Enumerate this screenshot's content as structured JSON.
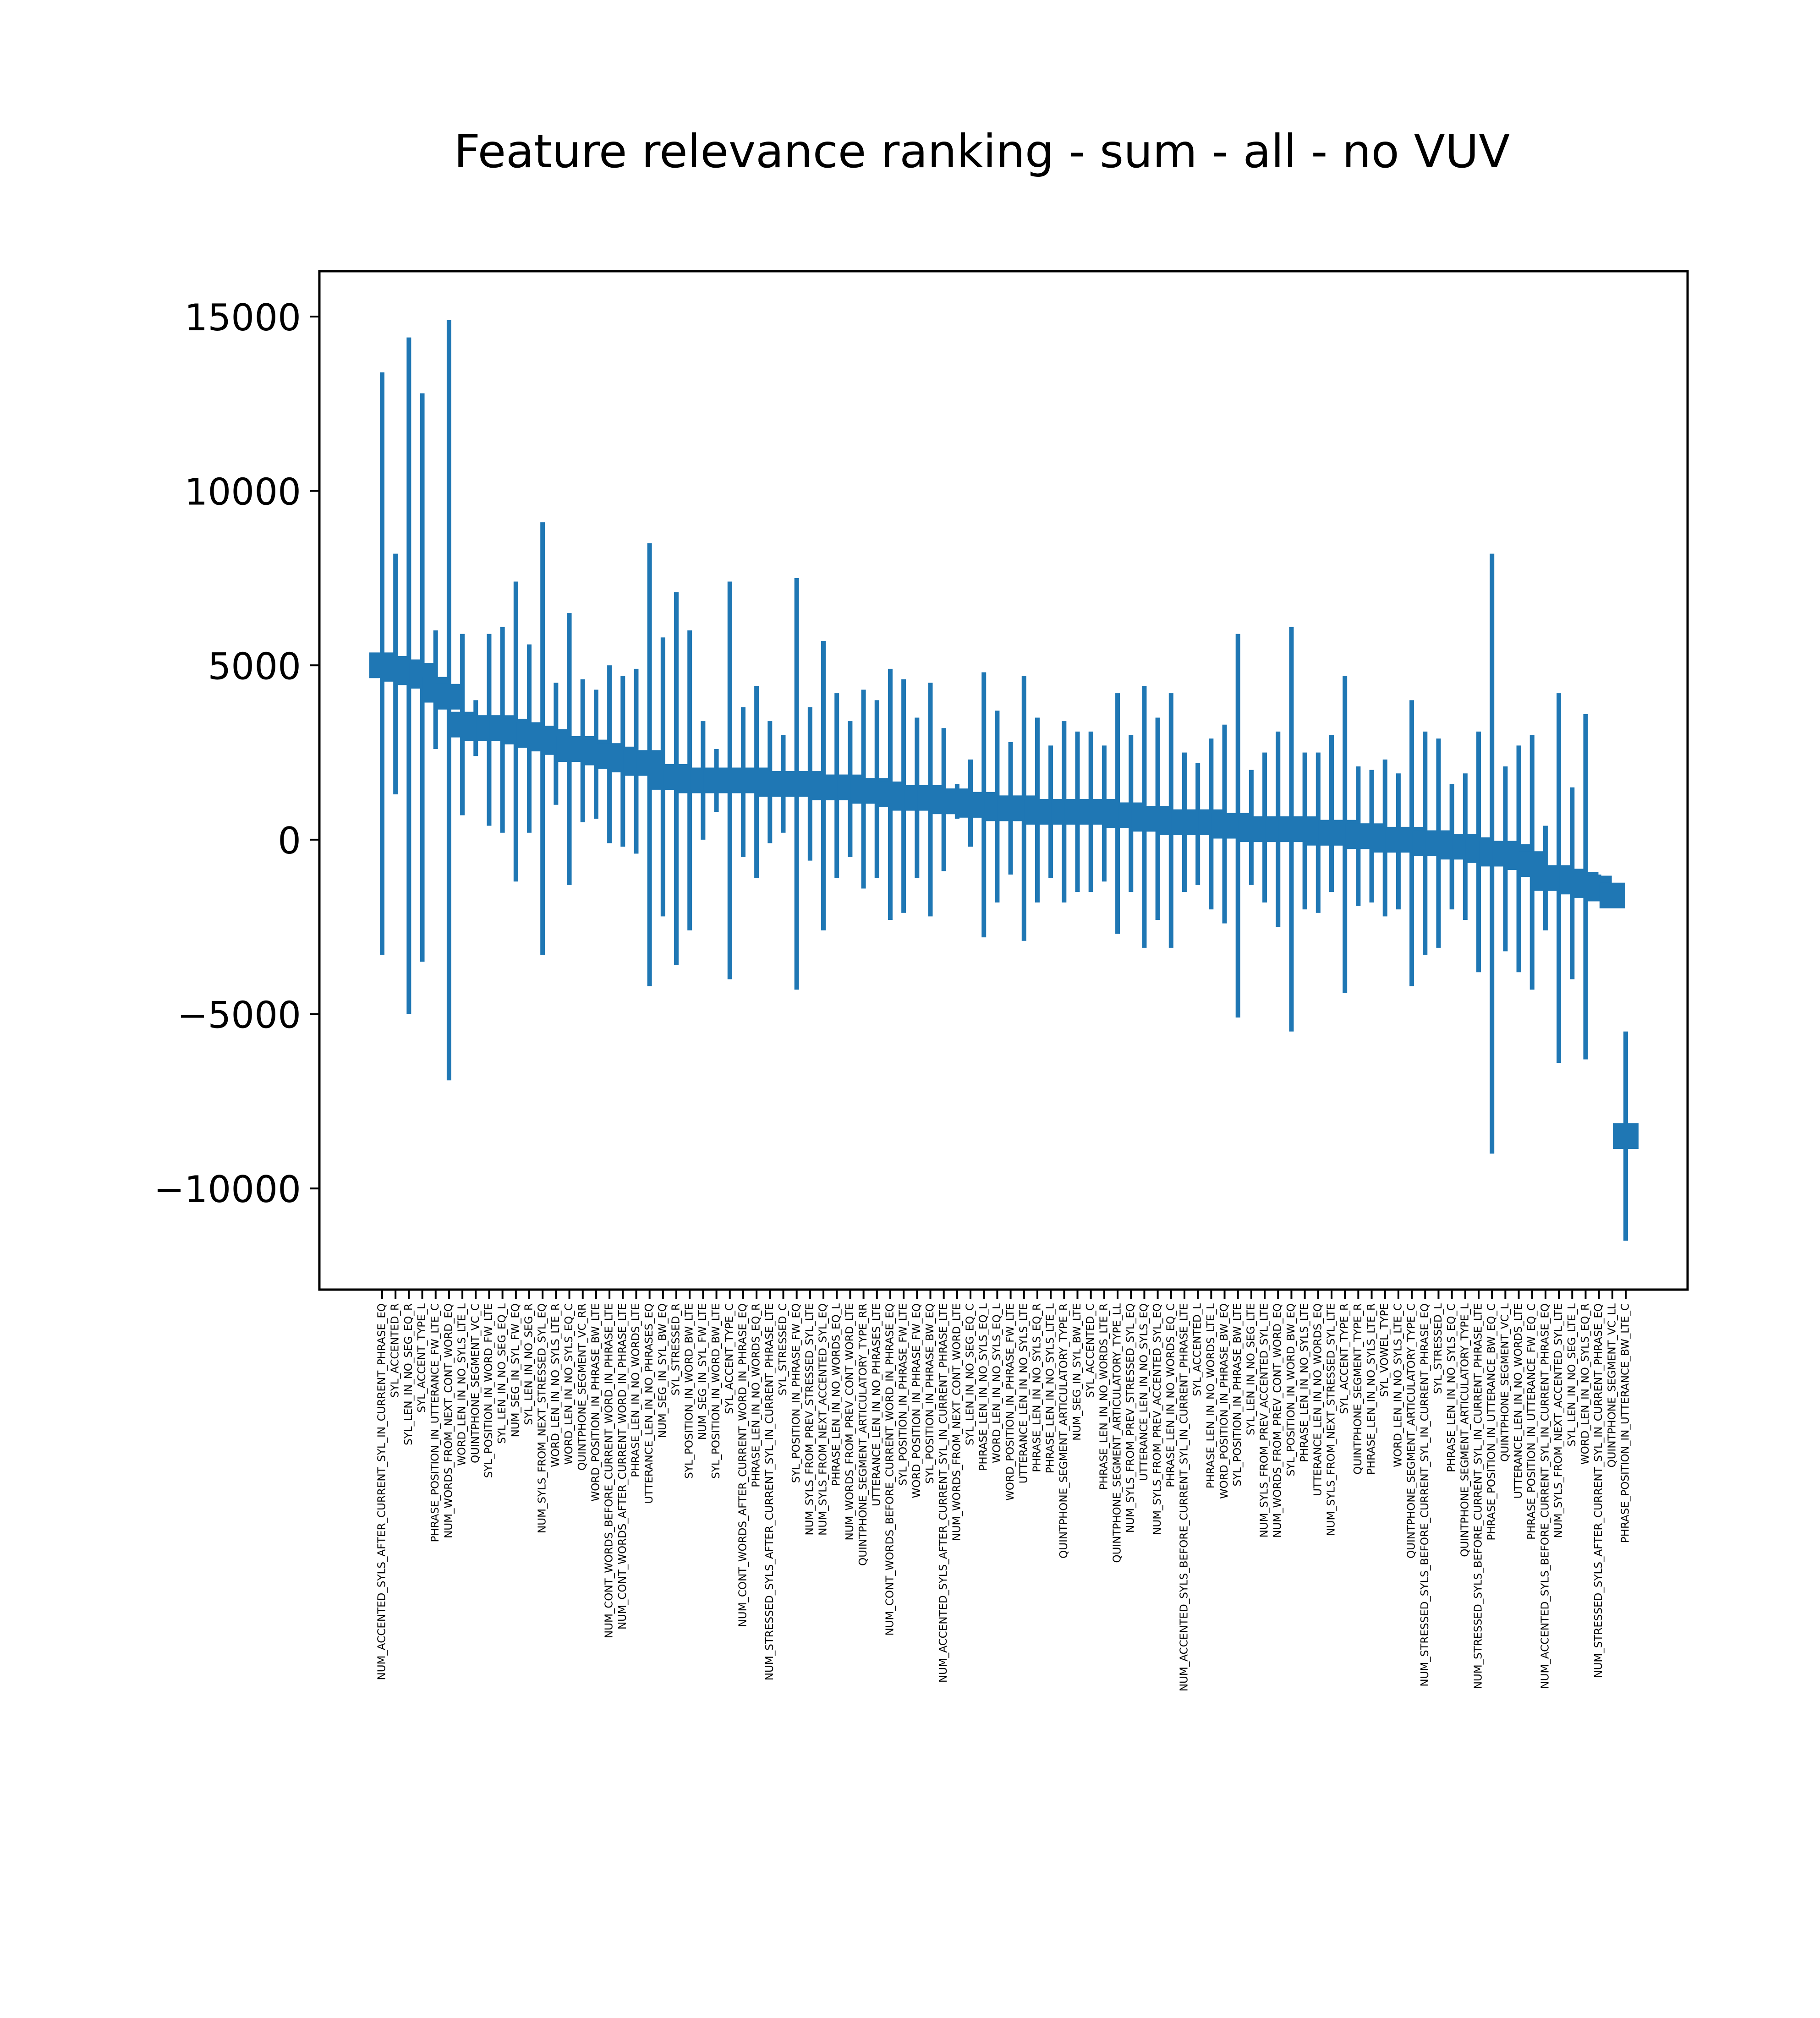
{
  "chart_data": {
    "type": "bar",
    "title": "Feature relevance ranking - sum - all - no VUV",
    "xlabel": "",
    "ylabel": "",
    "ylim": [
      -12900,
      16300
    ],
    "yticks": [
      15000,
      10000,
      5000,
      0,
      -5000,
      -10000
    ],
    "ytick_labels": [
      "15000",
      "10000",
      "5000",
      "0",
      "−5000",
      "−10000"
    ],
    "grid": false,
    "legend": "none",
    "color": "#1f77b4",
    "marker_style": "square mean marker with vertical error bar",
    "points": [
      {
        "label": "NUM_ACCENTED_SYLS_AFTER_CURRENT_SYL_IN_CURRENT_PHRASE_EQ",
        "mean": 5000,
        "low": -3300,
        "high": 13400
      },
      {
        "label": "SYL_ACCENTED_R",
        "mean": 4900,
        "low": 1300,
        "high": 8200
      },
      {
        "label": "SYL_LEN_IN_NO_SEG_EQ_R",
        "mean": 4800,
        "low": -5000,
        "high": 14400
      },
      {
        "label": "SYL_ACCENT_TYPE_L",
        "mean": 4700,
        "low": -3500,
        "high": 12800
      },
      {
        "label": "PHRASE_POSITION_IN_UTTERANCE_FW_LTE_C",
        "mean": 4300,
        "low": 2600,
        "high": 6000
      },
      {
        "label": "NUM_WORDS_FROM_NEXT_CONT_WORD_EQ",
        "mean": 4100,
        "low": -6900,
        "high": 14900
      },
      {
        "label": "WORD_LEN_IN_NO_SYLS_LTE_L",
        "mean": 3300,
        "low": 700,
        "high": 5900
      },
      {
        "label": "QUINTPHONE_SEGMENT_VC_C",
        "mean": 3200,
        "low": 2400,
        "high": 4000
      },
      {
        "label": "SYL_POSITION_IN_WORD_FW_LTE",
        "mean": 3200,
        "low": 400,
        "high": 5900
      },
      {
        "label": "SYL_LEN_IN_NO_SEG_EQ_L",
        "mean": 3200,
        "low": 200,
        "high": 6100
      },
      {
        "label": "NUM_SEG_IN_SYL_FW_EQ",
        "mean": 3100,
        "low": -1200,
        "high": 7400
      },
      {
        "label": "SYL_LEN_IN_NO_SEG_R",
        "mean": 3000,
        "low": 200,
        "high": 5600
      },
      {
        "label": "NUM_SYLS_FROM_NEXT_STRESSED_SYL_EQ",
        "mean": 2900,
        "low": -3300,
        "high": 9100
      },
      {
        "label": "WORD_LEN_IN_NO_SYLS_LTE_R",
        "mean": 2800,
        "low": 1000,
        "high": 4500
      },
      {
        "label": "WORD_LEN_IN_NO_SYLS_EQ_C",
        "mean": 2600,
        "low": -1300,
        "high": 6500
      },
      {
        "label": "QUINTPHONE_SEGMENT_VC_RR",
        "mean": 2600,
        "low": 500,
        "high": 4600
      },
      {
        "label": "WORD_POSITION_IN_PHRASE_BW_LTE",
        "mean": 2500,
        "low": 600,
        "high": 4300
      },
      {
        "label": "NUM_CONT_WORDS_BEFORE_CURRENT_WORD_IN_PHRASE_LTE",
        "mean": 2400,
        "low": -100,
        "high": 5000
      },
      {
        "label": "NUM_CONT_WORDS_AFTER_CURRENT_WORD_IN_PHRASE_LTE",
        "mean": 2300,
        "low": -200,
        "high": 4700
      },
      {
        "label": "PHRASE_LEN_IN_NO_WORDS_LTE",
        "mean": 2200,
        "low": -400,
        "high": 4900
      },
      {
        "label": "UTTERANCE_LEN_IN_NO_PHRASES_EQ",
        "mean": 2200,
        "low": -4200,
        "high": 8500
      },
      {
        "label": "NUM_SEG_IN_SYL_BW_EQ",
        "mean": 1800,
        "low": -2200,
        "high": 5800
      },
      {
        "label": "SYL_STRESSED_R",
        "mean": 1800,
        "low": -3600,
        "high": 7100
      },
      {
        "label": "SYL_POSITION_IN_WORD_BW_LTE",
        "mean": 1700,
        "low": -2600,
        "high": 6000
      },
      {
        "label": "NUM_SEG_IN_SYL_FW_LTE",
        "mean": 1700,
        "low": 0,
        "high": 3400
      },
      {
        "label": "SYL_POSITION_IN_WORD_BW_LTE",
        "mean": 1700,
        "low": 800,
        "high": 2600
      },
      {
        "label": "SYL_ACCENT_TYPE_C",
        "mean": 1700,
        "low": -4000,
        "high": 7400
      },
      {
        "label": "NUM_CONT_WORDS_AFTER_CURRENT_WORD_IN_PHRASE_EQ",
        "mean": 1700,
        "low": -500,
        "high": 3800
      },
      {
        "label": "PHRASE_LEN_IN_NO_WORDS_EQ_R",
        "mean": 1700,
        "low": -1100,
        "high": 4400
      },
      {
        "label": "NUM_STRESSED_SYLS_AFTER_CURRENT_SYL_IN_CURRENT_PHRASE_LTE",
        "mean": 1600,
        "low": -100,
        "high": 3400
      },
      {
        "label": "SYL_STRESSED_C",
        "mean": 1600,
        "low": 200,
        "high": 3000
      },
      {
        "label": "SYL_POSITION_IN_PHRASE_FW_EQ",
        "mean": 1600,
        "low": -4300,
        "high": 7500
      },
      {
        "label": "NUM_SYLS_FROM_PREV_STRESSED_SYL_LTE",
        "mean": 1600,
        "low": -600,
        "high": 3800
      },
      {
        "label": "NUM_SYLS_FROM_NEXT_ACCENTED_SYL_EQ",
        "mean": 1500,
        "low": -2600,
        "high": 5700
      },
      {
        "label": "PHRASE_LEN_IN_NO_WORDS_EQ_L",
        "mean": 1500,
        "low": -1100,
        "high": 4200
      },
      {
        "label": "NUM_WORDS_FROM_PREV_CONT_WORD_LTE",
        "mean": 1500,
        "low": -500,
        "high": 3400
      },
      {
        "label": "QUINTPHONE_SEGMENT_ARTICULATORY_TYPE_RR",
        "mean": 1400,
        "low": -1400,
        "high": 4300
      },
      {
        "label": "UTTERANCE_LEN_IN_NO_PHRASES_LTE",
        "mean": 1400,
        "low": -1100,
        "high": 4000
      },
      {
        "label": "NUM_CONT_WORDS_BEFORE_CURRENT_WORD_IN_PHRASE_EQ",
        "mean": 1300,
        "low": -2300,
        "high": 4900
      },
      {
        "label": "SYL_POSITION_IN_PHRASE_FW_LTE",
        "mean": 1200,
        "low": -2100,
        "high": 4600
      },
      {
        "label": "WORD_POSITION_IN_PHRASE_FW_EQ",
        "mean": 1200,
        "low": -1100,
        "high": 3500
      },
      {
        "label": "SYL_POSITION_IN_PHRASE_BW_EQ",
        "mean": 1200,
        "low": -2200,
        "high": 4500
      },
      {
        "label": "NUM_ACCENTED_SYLS_AFTER_CURRENT_SYL_IN_CURRENT_PHRASE_LTE",
        "mean": 1100,
        "low": -900,
        "high": 3200
      },
      {
        "label": "NUM_WORDS_FROM_NEXT_CONT_WORD_LTE",
        "mean": 1100,
        "low": 600,
        "high": 1600
      },
      {
        "label": "SYL_LEN_IN_NO_SEG_EQ_C",
        "mean": 1000,
        "low": -200,
        "high": 2300
      },
      {
        "label": "PHRASE_LEN_IN_NO_SYLS_EQ_L",
        "mean": 1000,
        "low": -2800,
        "high": 4800
      },
      {
        "label": "WORD_LEN_IN_NO_SYLS_EQ_L",
        "mean": 900,
        "low": -1800,
        "high": 3700
      },
      {
        "label": "WORD_POSITION_IN_PHRASE_FW_LTE",
        "mean": 900,
        "low": -1000,
        "high": 2800
      },
      {
        "label": "UTTERANCE_LEN_IN_NO_SYLS_LTE",
        "mean": 900,
        "low": -2900,
        "high": 4700
      },
      {
        "label": "PHRASE_LEN_IN_NO_SYLS_EQ_R",
        "mean": 800,
        "low": -1800,
        "high": 3500
      },
      {
        "label": "PHRASE_LEN_IN_NO_SYLS_LTE_L",
        "mean": 800,
        "low": -1100,
        "high": 2700
      },
      {
        "label": "QUINTPHONE_SEGMENT_ARTICULATORY_TYPE_R",
        "mean": 800,
        "low": -1800,
        "high": 3400
      },
      {
        "label": "NUM_SEG_IN_SYL_BW_LTE",
        "mean": 800,
        "low": -1500,
        "high": 3100
      },
      {
        "label": "SYL_ACCENTED_C",
        "mean": 800,
        "low": -1500,
        "high": 3100
      },
      {
        "label": "PHRASE_LEN_IN_NO_WORDS_LTE_R",
        "mean": 800,
        "low": -1200,
        "high": 2700
      },
      {
        "label": "QUINTPHONE_SEGMENT_ARTICULATORY_TYPE_LL",
        "mean": 700,
        "low": -2700,
        "high": 4200
      },
      {
        "label": "NUM_SYLS_FROM_PREV_STRESSED_SYL_EQ",
        "mean": 700,
        "low": -1500,
        "high": 3000
      },
      {
        "label": "UTTERANCE_LEN_IN_NO_SYLS_EQ",
        "mean": 600,
        "low": -3100,
        "high": 4400
      },
      {
        "label": "NUM_SYLS_FROM_PREV_ACCENTED_SYL_EQ",
        "mean": 600,
        "low": -2300,
        "high": 3500
      },
      {
        "label": "PHRASE_LEN_IN_NO_WORDS_EQ_C",
        "mean": 500,
        "low": -3100,
        "high": 4200
      },
      {
        "label": "NUM_ACCENTED_SYLS_BEFORE_CURRENT_SYL_IN_CURRENT_PHRASE_LTE",
        "mean": 500,
        "low": -1500,
        "high": 2500
      },
      {
        "label": "SYL_ACCENTED_L",
        "mean": 500,
        "low": -1300,
        "high": 2200
      },
      {
        "label": "PHRASE_LEN_IN_NO_WORDS_LTE_L",
        "mean": 500,
        "low": -2000,
        "high": 2900
      },
      {
        "label": "WORD_POSITION_IN_PHRASE_BW_EQ",
        "mean": 400,
        "low": -2400,
        "high": 3300
      },
      {
        "label": "SYL_POSITION_IN_PHRASE_BW_LTE",
        "mean": 400,
        "low": -5100,
        "high": 5900
      },
      {
        "label": "SYL_LEN_IN_NO_SEG_LTE",
        "mean": 300,
        "low": -1300,
        "high": 2000
      },
      {
        "label": "NUM_SYLS_FROM_PREV_ACCENTED_SYL_LTE",
        "mean": 300,
        "low": -1800,
        "high": 2500
      },
      {
        "label": "NUM_WORDS_FROM_PREV_CONT_WORD_EQ",
        "mean": 300,
        "low": -2500,
        "high": 3100
      },
      {
        "label": "SYL_POSITION_IN_WORD_BW_EQ",
        "mean": 300,
        "low": -5500,
        "high": 6100
      },
      {
        "label": "PHRASE_LEN_IN_NO_SYLS_LTE",
        "mean": 300,
        "low": -2000,
        "high": 2500
      },
      {
        "label": "UTTERANCE_LEN_IN_NO_WORDS_EQ",
        "mean": 200,
        "low": -2100,
        "high": 2500
      },
      {
        "label": "NUM_SYLS_FROM_NEXT_STRESSED_SYL_LTE",
        "mean": 200,
        "low": -1500,
        "high": 3000
      },
      {
        "label": "SYL_ACCENT_TYPE_R",
        "mean": 200,
        "low": -4400,
        "high": 4700
      },
      {
        "label": "QUINTPHONE_SEGMENT_TYPE_R",
        "mean": 100,
        "low": -1900,
        "high": 2100
      },
      {
        "label": "PHRASE_LEN_IN_NO_SYLS_LTE_R",
        "mean": 100,
        "low": -1800,
        "high": 2000
      },
      {
        "label": "SYL_VOWEL_TYPE",
        "mean": 0,
        "low": -2200,
        "high": 2300
      },
      {
        "label": "WORD_LEN_IN_NO_SYLS_LTE_C",
        "mean": 0,
        "low": -2000,
        "high": 1900
      },
      {
        "label": "QUINTPHONE_SEGMENT_ARTICULATORY_TYPE_C",
        "mean": 0,
        "low": -4200,
        "high": 4000
      },
      {
        "label": "NUM_STRESSED_SYLS_BEFORE_CURRENT_SYL_IN_CURRENT_PHRASE_EQ",
        "mean": -100,
        "low": -3300,
        "high": 3100
      },
      {
        "label": "SYL_STRESSED_L",
        "mean": -100,
        "low": -3100,
        "high": 2900
      },
      {
        "label": "PHRASE_LEN_IN_NO_SYLS_EQ_C",
        "mean": -200,
        "low": -2000,
        "high": 1600
      },
      {
        "label": "QUINTPHONE_SEGMENT_ARTICULATORY_TYPE_L",
        "mean": -200,
        "low": -2300,
        "high": 1900
      },
      {
        "label": "NUM_STRESSED_SYLS_BEFORE_CURRENT_SYL_IN_CURRENT_PHRASE_LTE",
        "mean": -300,
        "low": -3800,
        "high": 3100
      },
      {
        "label": "PHRASE_POSITION_IN_UTTERANCE_BW_EQ_C",
        "mean": -400,
        "low": -9000,
        "high": 8200
      },
      {
        "label": "QUINTPHONE_SEGMENT_VC_L",
        "mean": -400,
        "low": -3200,
        "high": 2100
      },
      {
        "label": "UTTERANCE_LEN_IN_NO_WORDS_LTE",
        "mean": -500,
        "low": -3800,
        "high": 2700
      },
      {
        "label": "PHRASE_POSITION_IN_UTTERANCE_FW_EQ_C",
        "mean": -700,
        "low": -4300,
        "high": 3000
      },
      {
        "label": "NUM_ACCENTED_SYLS_BEFORE_CURRENT_SYL_IN_CURRENT_PHRASE_EQ",
        "mean": -1100,
        "low": -2600,
        "high": 400
      },
      {
        "label": "NUM_SYLS_FROM_NEXT_ACCENTED_SYL_LTE",
        "mean": -1100,
        "low": -6400,
        "high": 4200
      },
      {
        "label": "SYL_LEN_IN_NO_SEG_LTE_L",
        "mean": -1200,
        "low": -4000,
        "high": 1500
      },
      {
        "label": "WORD_LEN_IN_NO_SYLS_EQ_R",
        "mean": -1300,
        "low": -6300,
        "high": 3600
      },
      {
        "label": "NUM_STRESSED_SYLS_AFTER_CURRENT_SYL_IN_CURRENT_PHRASE_EQ",
        "mean": -1400,
        "low": -1700,
        "high": -1000
      },
      {
        "label": "QUINTPHONE_SEGMENT_VC_LL",
        "mean": -1600,
        "low": -1800,
        "high": -1300
      },
      {
        "label": "PHRASE_POSITION_IN_UTTERANCE_BW_LTE_C",
        "mean": -8500,
        "low": -11500,
        "high": -5500
      }
    ]
  }
}
